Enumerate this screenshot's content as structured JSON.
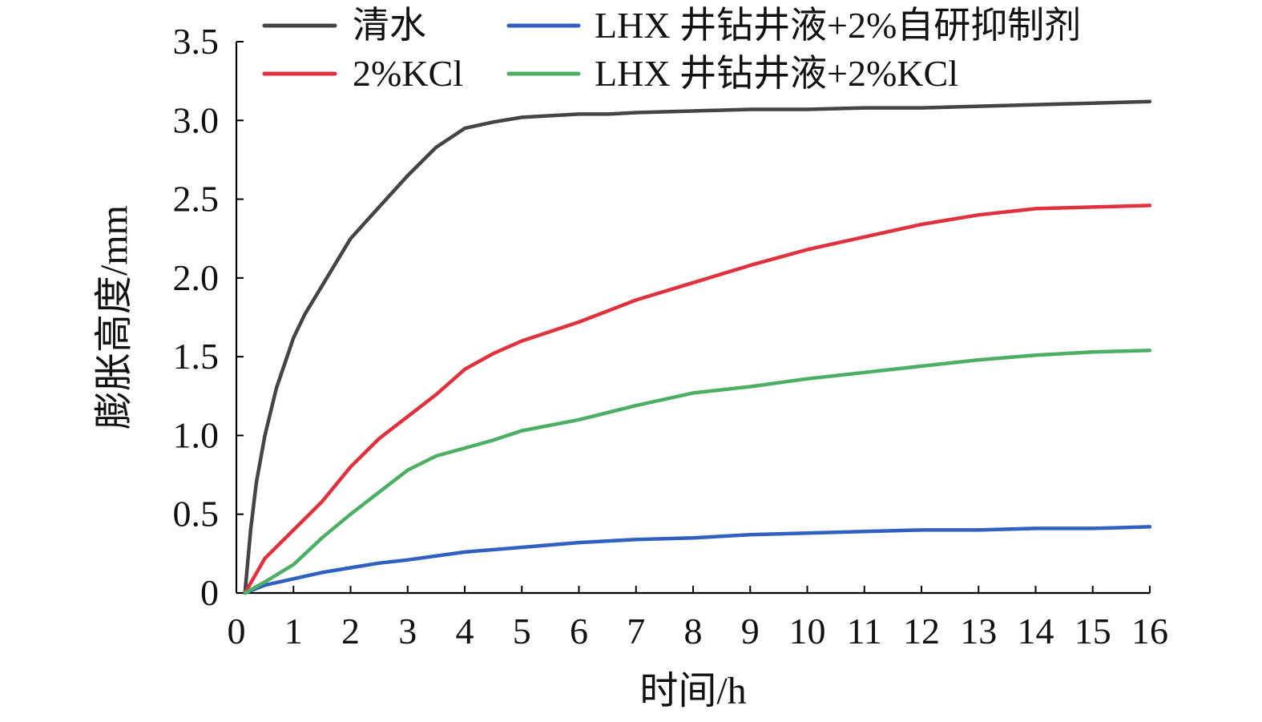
{
  "chart_data": {
    "type": "line",
    "xlabel": "时间/h",
    "ylabel": "膨胀高度/mm",
    "xlim": [
      0,
      16
    ],
    "ylim": [
      0,
      3.5
    ],
    "x_ticks": [
      0,
      1,
      2,
      3,
      4,
      5,
      6,
      7,
      8,
      9,
      10,
      11,
      12,
      13,
      14,
      15,
      16
    ],
    "x_tick_labels": [
      "0",
      "1",
      "2",
      "3",
      "4",
      "5",
      "6",
      "7",
      "8",
      "9",
      "10",
      "11",
      "12",
      "13",
      "14",
      "15",
      "16"
    ],
    "y_ticks": [
      0,
      0.5,
      1.0,
      1.5,
      2.0,
      2.5,
      3.0,
      3.5
    ],
    "y_tick_labels": [
      "0",
      "0.5",
      "1.0",
      "1.5",
      "2.0",
      "2.5",
      "3.0",
      "3.5"
    ],
    "grid": false,
    "legend_position": "top",
    "series": [
      {
        "name": "清水",
        "color": "#444444",
        "x": [
          0.15,
          0.25,
          0.35,
          0.5,
          0.7,
          1.0,
          1.2,
          1.5,
          2.0,
          2.5,
          3.0,
          3.5,
          4.0,
          4.5,
          5.0,
          5.5,
          6.0,
          6.5,
          7.0,
          8.0,
          9.0,
          10.0,
          11.0,
          12.0,
          13.0,
          14.0,
          15.0,
          16.0
        ],
        "y": [
          0.0,
          0.4,
          0.7,
          1.0,
          1.3,
          1.62,
          1.77,
          1.95,
          2.25,
          2.45,
          2.65,
          2.83,
          2.95,
          2.99,
          3.02,
          3.03,
          3.04,
          3.04,
          3.05,
          3.06,
          3.07,
          3.07,
          3.08,
          3.08,
          3.09,
          3.1,
          3.11,
          3.12
        ]
      },
      {
        "name": "2%KCl",
        "color": "#e0313e",
        "x": [
          0.15,
          0.5,
          1.0,
          1.5,
          2.0,
          2.5,
          3.0,
          3.5,
          4.0,
          4.5,
          5.0,
          6.0,
          7.0,
          8.0,
          9.0,
          10.0,
          11.0,
          12.0,
          13.0,
          14.0,
          15.0,
          16.0
        ],
        "y": [
          0.0,
          0.22,
          0.4,
          0.58,
          0.8,
          0.98,
          1.12,
          1.26,
          1.42,
          1.52,
          1.6,
          1.72,
          1.86,
          1.97,
          2.08,
          2.18,
          2.26,
          2.34,
          2.4,
          2.44,
          2.45,
          2.46
        ]
      },
      {
        "name": "LHX 井钻井液+2%自研抑制剂",
        "color": "#3060c0",
        "x": [
          0.15,
          0.5,
          1.0,
          1.5,
          2.0,
          2.5,
          3.0,
          4.0,
          5.0,
          6.0,
          7.0,
          8.0,
          9.0,
          10.0,
          11.0,
          12.0,
          13.0,
          14.0,
          15.0,
          16.0
        ],
        "y": [
          0.0,
          0.05,
          0.09,
          0.13,
          0.16,
          0.19,
          0.21,
          0.26,
          0.29,
          0.32,
          0.34,
          0.35,
          0.37,
          0.38,
          0.39,
          0.4,
          0.4,
          0.41,
          0.41,
          0.42
        ]
      },
      {
        "name": "LHX 井钻井液+2%KCl",
        "color": "#4caf63",
        "x": [
          0.15,
          0.5,
          1.0,
          1.5,
          2.0,
          2.5,
          3.0,
          3.5,
          4.0,
          4.5,
          5.0,
          6.0,
          7.0,
          8.0,
          9.0,
          10.0,
          11.0,
          12.0,
          13.0,
          14.0,
          15.0,
          16.0
        ],
        "y": [
          0.0,
          0.07,
          0.18,
          0.35,
          0.5,
          0.64,
          0.78,
          0.87,
          0.92,
          0.97,
          1.03,
          1.1,
          1.19,
          1.27,
          1.31,
          1.36,
          1.4,
          1.44,
          1.48,
          1.51,
          1.53,
          1.54
        ]
      }
    ]
  }
}
